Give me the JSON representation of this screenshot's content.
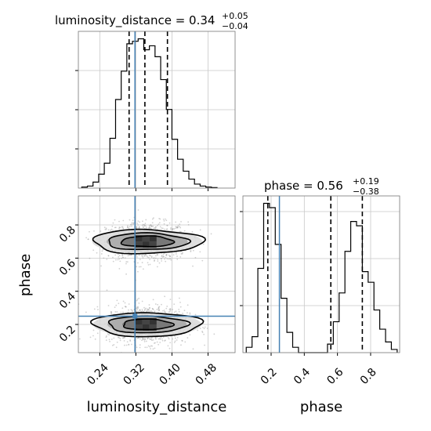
{
  "chart_data": {
    "type": "corner",
    "parameters": [
      "luminosity_distance",
      "phase"
    ],
    "axis_labels": {
      "x_lower_left": "luminosity_distance",
      "y_lower_left": "phase",
      "x_lower_right": "phase"
    },
    "titles": {
      "luminosity_distance": {
        "text": "luminosity_distance = 0.34",
        "plus": "+0.05",
        "minus": "−0.04"
      },
      "phase": {
        "text": "phase = 0.56",
        "plus": "+0.19",
        "minus": "−0.38"
      }
    },
    "ticks": {
      "luminosity_distance": {
        "values": [
          0.24,
          0.32,
          0.4,
          0.48
        ],
        "labels": [
          "0.24",
          "0.32",
          "0.40",
          "0.48"
        ]
      },
      "phase": {
        "values": [
          0.2,
          0.4,
          0.6,
          0.8
        ],
        "labels": [
          "0.2",
          "0.4",
          "0.6",
          "0.8"
        ]
      }
    },
    "ranges": {
      "luminosity_distance": [
        0.1925,
        0.54
      ],
      "phase": [
        0.03,
        0.975
      ]
    },
    "truth": {
      "luminosity_distance": 0.318,
      "phase": 0.25
    },
    "quantiles": {
      "luminosity_distance": [
        0.305,
        0.34,
        0.39
      ],
      "phase": [
        0.18,
        0.56,
        0.75
      ]
    },
    "hist_luminosity_distance": {
      "bin_edges": [
        0.2,
        0.2125,
        0.225,
        0.2375,
        0.25,
        0.2625,
        0.275,
        0.2875,
        0.3,
        0.3125,
        0.325,
        0.3375,
        0.35,
        0.3625,
        0.375,
        0.3875,
        0.4,
        0.4125,
        0.425,
        0.4375,
        0.45,
        0.4625,
        0.475,
        0.4875,
        0.5
      ],
      "counts": [
        2,
        4,
        12,
        28,
        50,
        100,
        178,
        235,
        290,
        295,
        300,
        278,
        286,
        264,
        218,
        158,
        98,
        58,
        34,
        18,
        8,
        4,
        2,
        1
      ]
    },
    "hist_phase": {
      "bin_edges": [
        0.05,
        0.085,
        0.12,
        0.155,
        0.19,
        0.225,
        0.26,
        0.295,
        0.33,
        0.365,
        0.4,
        0.435,
        0.47,
        0.505,
        0.54,
        0.575,
        0.61,
        0.645,
        0.68,
        0.715,
        0.75,
        0.785,
        0.82,
        0.855,
        0.89,
        0.925,
        0.96
      ],
      "counts": [
        10,
        30,
        158,
        280,
        272,
        203,
        102,
        38,
        10,
        0,
        0,
        0,
        0,
        0,
        16,
        58,
        112,
        190,
        246,
        238,
        152,
        132,
        80,
        44,
        20,
        6
      ]
    },
    "lobes": [
      {
        "cx": 0.345,
        "cy": 0.7,
        "levels": [
          [
            0.032,
            0.058
          ],
          [
            0.05,
            0.09
          ],
          [
            0.072,
            0.122
          ]
        ]
      },
      {
        "cx": 0.345,
        "cy": 0.2,
        "levels": [
          [
            0.032,
            0.055
          ],
          [
            0.05,
            0.088
          ],
          [
            0.072,
            0.12
          ]
        ]
      }
    ]
  }
}
